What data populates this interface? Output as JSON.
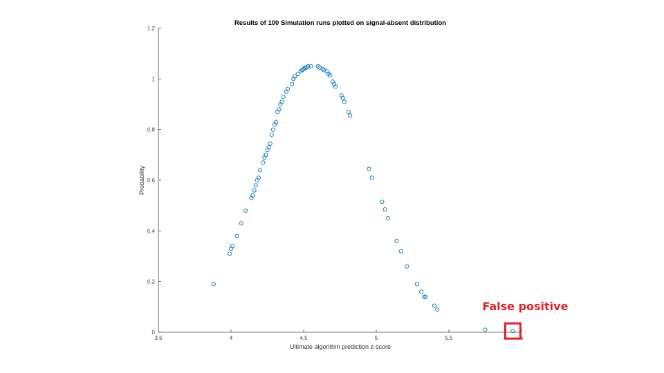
{
  "chart_data": {
    "type": "scatter",
    "title": "Results of 100 Simulation runs plotted on signal-absent distribution",
    "xlabel": "Ultimate algorithm prediction z-score",
    "ylabel": "Probability",
    "xlim": [
      3.5,
      6
    ],
    "ylim": [
      0,
      1.2
    ],
    "xticks": [
      3.5,
      4,
      4.5,
      5,
      5.5,
      6
    ],
    "xtick_labels": [
      "3.5",
      "4",
      "4.5",
      "5",
      "5.5",
      "6"
    ],
    "yticks": [
      0,
      0.2,
      0.4,
      0.6,
      0.8,
      1,
      1.2
    ],
    "ytick_labels": [
      "0",
      "0.2",
      "0.4",
      "0.6",
      "0.8",
      "1",
      "1.2"
    ],
    "grid": false,
    "marker": "open-circle",
    "marker_color": "#0072bd",
    "series": [
      {
        "points": [
          [
            3.88,
            0.19
          ],
          [
            3.99,
            0.31
          ],
          [
            4.0,
            0.33
          ],
          [
            4.01,
            0.34
          ],
          [
            4.04,
            0.38
          ],
          [
            4.07,
            0.43
          ],
          [
            4.1,
            0.48
          ],
          [
            4.14,
            0.53
          ],
          [
            4.15,
            0.54
          ],
          [
            4.16,
            0.56
          ],
          [
            4.17,
            0.58
          ],
          [
            4.18,
            0.6
          ],
          [
            4.19,
            0.61
          ],
          [
            4.2,
            0.64
          ],
          [
            4.22,
            0.67
          ],
          [
            4.23,
            0.69
          ],
          [
            4.24,
            0.7
          ],
          [
            4.25,
            0.72
          ],
          [
            4.26,
            0.73
          ],
          [
            4.27,
            0.745
          ],
          [
            4.28,
            0.78
          ],
          [
            4.29,
            0.8
          ],
          [
            4.3,
            0.82
          ],
          [
            4.31,
            0.83
          ],
          [
            4.32,
            0.87
          ],
          [
            4.33,
            0.88
          ],
          [
            4.34,
            0.9
          ],
          [
            4.35,
            0.91
          ],
          [
            4.36,
            0.93
          ],
          [
            4.38,
            0.95
          ],
          [
            4.39,
            0.96
          ],
          [
            4.42,
            0.98
          ],
          [
            4.43,
            1.0
          ],
          [
            4.44,
            1.01
          ],
          [
            4.46,
            1.02
          ],
          [
            4.48,
            1.03
          ],
          [
            4.49,
            1.035
          ],
          [
            4.5,
            1.04
          ],
          [
            4.51,
            1.045
          ],
          [
            4.52,
            1.045
          ],
          [
            4.53,
            1.05
          ],
          [
            4.55,
            1.05
          ],
          [
            4.6,
            1.05
          ],
          [
            4.61,
            1.045
          ],
          [
            4.63,
            1.04
          ],
          [
            4.64,
            1.035
          ],
          [
            4.66,
            1.03
          ],
          [
            4.67,
            1.02
          ],
          [
            4.68,
            1.015
          ],
          [
            4.7,
            0.99
          ],
          [
            4.71,
            0.98
          ],
          [
            4.72,
            0.97
          ],
          [
            4.76,
            0.935
          ],
          [
            4.77,
            0.925
          ],
          [
            4.78,
            0.91
          ],
          [
            4.81,
            0.87
          ],
          [
            4.82,
            0.855
          ],
          [
            4.95,
            0.645
          ],
          [
            4.97,
            0.61
          ],
          [
            5.04,
            0.515
          ],
          [
            5.06,
            0.485
          ],
          [
            5.08,
            0.45
          ],
          [
            5.14,
            0.36
          ],
          [
            5.17,
            0.32
          ],
          [
            5.21,
            0.26
          ],
          [
            5.28,
            0.19
          ],
          [
            5.31,
            0.16
          ],
          [
            5.33,
            0.14
          ],
          [
            5.34,
            0.14
          ],
          [
            5.4,
            0.105
          ],
          [
            5.42,
            0.09
          ],
          [
            5.75,
            0.01
          ],
          [
            5.94,
            0.005
          ]
        ]
      }
    ],
    "annotations": [
      {
        "text": "False positive",
        "color": "#e21f26",
        "target": [
          5.94,
          0.005
        ],
        "box": "square"
      }
    ]
  }
}
